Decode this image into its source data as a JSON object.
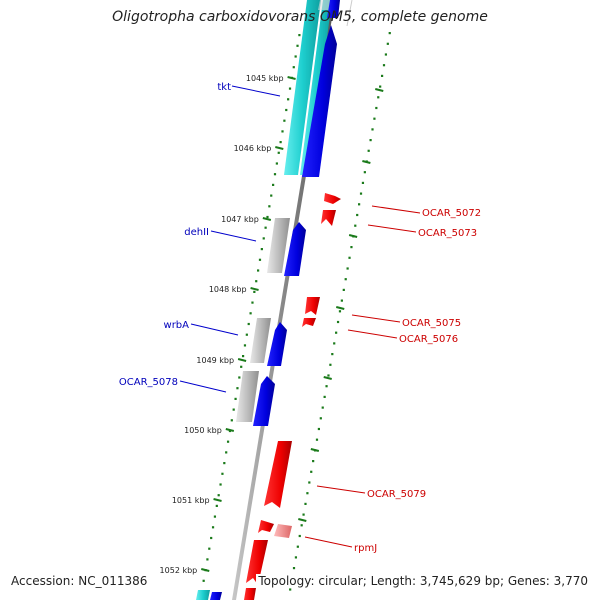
{
  "header": {
    "title": "Oligotropha carboxidovorans OM5, complete genome"
  },
  "footer": {
    "accession": "Accession: NC_011386",
    "info": "Topology: circular; Length: 3,745,629 bp; Genes: 3,770"
  },
  "map": {
    "ticks": [
      "1045 kbp",
      "1046 kbp",
      "1047 kbp",
      "1048 kbp",
      "1049 kbp",
      "1050 kbp",
      "1051 kbp",
      "1052 kbp"
    ],
    "left_labels": [
      "tkt",
      "dehII",
      "wrbA",
      "OCAR_5078"
    ],
    "right_labels": [
      "OCAR_5072",
      "OCAR_5073",
      "OCAR_5075",
      "OCAR_5076",
      "OCAR_5079",
      "rpmJ"
    ],
    "colors": {
      "forward": "#0000ee",
      "reverse": "#ee0000",
      "cyan": "#1ecfcf",
      "grey": "#b8b8b8",
      "backbone": "#888888",
      "tick": "#1a7a1a",
      "left_label": "#0000bb",
      "right_label": "#cc0000"
    }
  }
}
